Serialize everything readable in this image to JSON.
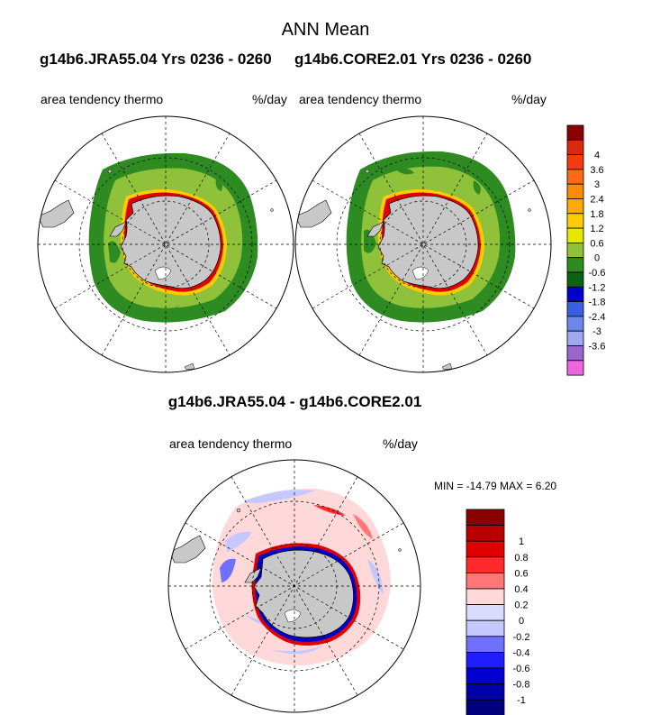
{
  "main_title": "ANN Mean",
  "panels": {
    "left": {
      "case_title": "g14b6.JRA55.04  Yrs 0236 - 0260",
      "variable": "area tendency thermo",
      "units": "%/day"
    },
    "right": {
      "case_title": "g14b6.CORE2.01  Yrs 0236 - 0260",
      "variable": "area tendency thermo",
      "units": "%/day"
    },
    "diff": {
      "title": "g14b6.JRA55.04 - g14b6.CORE2.01",
      "variable": "area tendency thermo",
      "units": "%/day",
      "minmax": "MIN = -14.79 MAX =   6.20"
    }
  },
  "colors": {
    "land": "#c8c8c8",
    "ocean": "#ffffff",
    "grid": "#000000"
  },
  "chart_data": [
    {
      "type": "heatmap",
      "projection": "south-polar-stereographic",
      "legend_placement": "right",
      "colorbar": {
        "levels": [
          {
            "label": "",
            "color": "#8b0000"
          },
          {
            "label": "4",
            "color": "#d92a0b"
          },
          {
            "label": "3.6",
            "color": "#f03c10"
          },
          {
            "label": "3",
            "color": "#ff6a13"
          },
          {
            "label": "2.4",
            "color": "#ff8a00"
          },
          {
            "label": "1.8",
            "color": "#ffaa00"
          },
          {
            "label": "1.2",
            "color": "#ffcc00"
          },
          {
            "label": "0.6",
            "color": "#e6e600"
          },
          {
            "label": "0",
            "color": "#8fc23a"
          },
          {
            "label": "-0.6",
            "color": "#2e8b22"
          },
          {
            "label": "-1.2",
            "color": "#0a6410"
          },
          {
            "label": "-1.8",
            "color": "#0000cd"
          },
          {
            "label": "-2.4",
            "color": "#3a5fe0"
          },
          {
            "label": "-3",
            "color": "#6e86ea"
          },
          {
            "label": "-3.6",
            "color": "#9fa8f0"
          },
          {
            "label": "",
            "color": "#9966cc"
          },
          {
            "label": "",
            "color": "#ee66dd"
          }
        ]
      }
    },
    {
      "type": "heatmap",
      "projection": "south-polar-stereographic",
      "legend_placement": "right",
      "colorbar": {
        "levels": [
          {
            "label": "",
            "color": "#8b0000"
          },
          {
            "label": "1",
            "color": "#b80000"
          },
          {
            "label": "0.8",
            "color": "#e00000"
          },
          {
            "label": "0.6",
            "color": "#ff2a2a"
          },
          {
            "label": "0.4",
            "color": "#ff7777"
          },
          {
            "label": "0.2",
            "color": "#ffd9d9"
          },
          {
            "label": "0",
            "color": "#d9dcff"
          },
          {
            "label": "-0.2",
            "color": "#c4c8ff"
          },
          {
            "label": "-0.4",
            "color": "#7070ff"
          },
          {
            "label": "-0.6",
            "color": "#1e1eff"
          },
          {
            "label": "-0.8",
            "color": "#0000d0"
          },
          {
            "label": "-1",
            "color": "#0000a8"
          },
          {
            "label": "",
            "color": "#00007a"
          }
        ]
      }
    }
  ]
}
